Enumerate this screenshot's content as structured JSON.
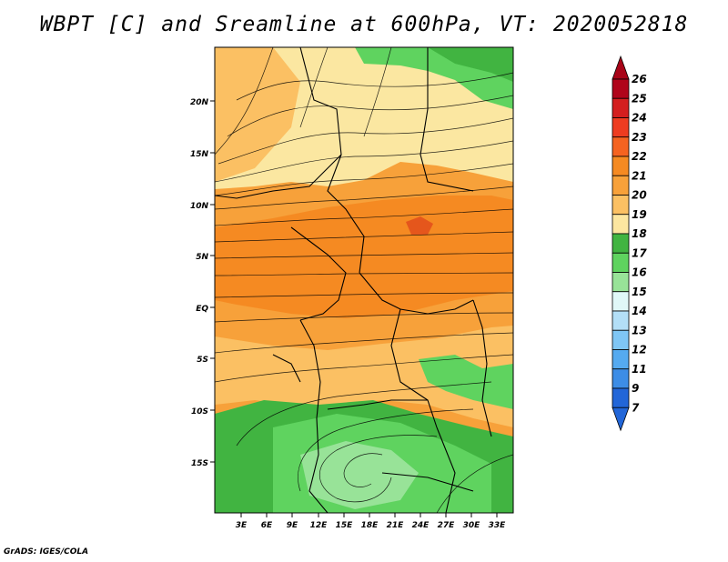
{
  "title": "WBPT [C] and Sreamline at 600hPa, VT: 2020052818",
  "footer": "GrADS: IGES/COLA",
  "map": {
    "lat_labels": [
      "20N",
      "15N",
      "10N",
      "5N",
      "EQ",
      "5S",
      "10S",
      "15S"
    ],
    "lon_labels": [
      "3E",
      "6E",
      "9E",
      "12E",
      "15E",
      "18E",
      "21E",
      "24E",
      "27E",
      "30E",
      "33E"
    ],
    "colors": {
      "green_dark": "#41b441",
      "green_mid": "#5fd35f",
      "green_light": "#98e398",
      "yellow_pale": "#fbe7a1",
      "orange_light": "#fbc063",
      "orange": "#f7a13a",
      "orange_dark": "#f58a22",
      "red": "#e5561c"
    }
  },
  "colorbar": {
    "labels": [
      "26",
      "25",
      "24",
      "23",
      "22",
      "21",
      "20",
      "19",
      "18",
      "17",
      "16",
      "15",
      "14",
      "13",
      "12",
      "11",
      "9",
      "7"
    ],
    "colors": [
      "#b0041a",
      "#d41f1f",
      "#ee3c20",
      "#f56320",
      "#f58a22",
      "#f7a13a",
      "#fbc063",
      "#fce6a0",
      "#41b441",
      "#5fd35f",
      "#98e398",
      "#e0f8f8",
      "#b3dff7",
      "#7fc6f5",
      "#55aaf0",
      "#3d8de6",
      "#2266d8"
    ],
    "top_arrow_color": "#a80418",
    "bottom_arrow_color": "#2266d8"
  }
}
